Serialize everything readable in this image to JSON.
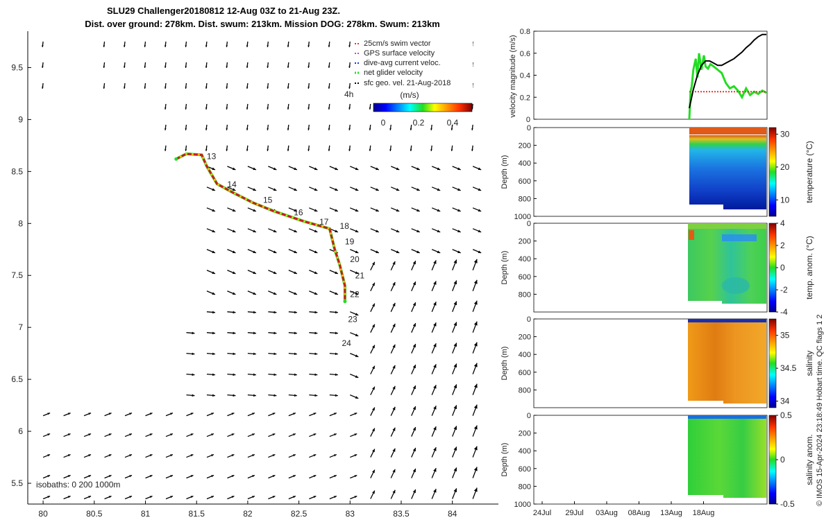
{
  "header": {
    "title_line1": "SLU29 Challenger20180812 12-Aug 03Z to 21-Aug 23Z.",
    "title_line2": "Dist. over ground: 278km. Dist. swum: 213km. Mission DOG: 278km. Swum: 213km"
  },
  "footer": {
    "isobaths_label": "isobaths: 0   200  1000m",
    "side_credit": "© IMOS 15-Apr-2024 23:18:49 Hobart time. QC flags 1  2"
  },
  "legend": {
    "entries": [
      {
        "label": "25cm/s swim vector",
        "color": "#e8332a"
      },
      {
        "label": "GPS surface velocity",
        "color": "#d23cd2"
      },
      {
        "label": "dive-avg current veloc.",
        "color": "#1e2fd6"
      },
      {
        "label": "net glider velocity",
        "color": "#22dd22"
      },
      {
        "label": "sfc geo. vel. 21-Aug-2018",
        "color": "#000000"
      }
    ],
    "day_marker": "4h",
    "colorbar_title": "(m/s)",
    "colorbar_ticks": [
      "0",
      "0.2",
      "0.4"
    ]
  },
  "chart_data": [
    {
      "type": "scatter",
      "name": "glider-track-map",
      "xlim": [
        79.85,
        84.45
      ],
      "ylim": [
        5.3,
        9.85
      ],
      "x_ticks": [
        "80",
        "80.5",
        "81",
        "81.5",
        "82",
        "82.5",
        "83",
        "83.5",
        "84"
      ],
      "y_ticks": [
        "5.5",
        "6",
        "6.5",
        "7",
        "7.5",
        "8",
        "8.5",
        "9",
        "9.5"
      ],
      "track": {
        "lon": [
          81.3,
          81.4,
          81.55,
          81.6,
          81.7,
          81.85,
          82.05,
          82.25,
          82.55,
          82.8,
          82.85,
          82.9,
          82.95,
          82.95
        ],
        "lat": [
          8.62,
          8.67,
          8.66,
          8.55,
          8.38,
          8.3,
          8.2,
          8.12,
          8.02,
          7.95,
          7.75,
          7.6,
          7.4,
          7.25
        ]
      },
      "day_labels": [
        {
          "text": "13",
          "lon": 81.6,
          "lat": 8.62
        },
        {
          "text": "14",
          "lon": 81.8,
          "lat": 8.35
        },
        {
          "text": "15",
          "lon": 82.15,
          "lat": 8.2
        },
        {
          "text": "16",
          "lon": 82.45,
          "lat": 8.08
        },
        {
          "text": "17",
          "lon": 82.7,
          "lat": 7.99
        },
        {
          "text": "18",
          "lon": 82.9,
          "lat": 7.95
        },
        {
          "text": "19",
          "lon": 82.95,
          "lat": 7.8
        },
        {
          "text": "20",
          "lon": 83.0,
          "lat": 7.63
        },
        {
          "text": "21",
          "lon": 83.05,
          "lat": 7.47
        },
        {
          "text": "22",
          "lon": 83.0,
          "lat": 7.29
        },
        {
          "text": "23",
          "lon": 82.98,
          "lat": 7.05
        },
        {
          "text": "24",
          "lon": 82.92,
          "lat": 6.82
        }
      ]
    },
    {
      "type": "line",
      "name": "velocity-magnitude",
      "ylabel": "velocity magnitude (m/s)",
      "ylim": [
        0,
        0.8
      ],
      "y_ticks": [
        "0",
        "0.2",
        "0.4",
        "0.6",
        "0.8"
      ],
      "series": [
        {
          "name": "net glider velocity",
          "color": "#22dd22",
          "t": [
            0,
            0.15,
            0.3,
            0.5,
            0.8,
            1.0,
            1.2,
            1.5,
            1.8,
            2.0,
            2.3,
            2.6,
            3.0,
            3.5,
            4.0,
            4.5,
            5.0,
            5.5,
            6.0,
            6.5,
            7.0,
            7.5,
            8.0,
            8.5,
            9.0,
            9.5
          ],
          "v": [
            0.0,
            0.25,
            0.3,
            0.45,
            0.55,
            0.38,
            0.6,
            0.45,
            0.58,
            0.48,
            0.46,
            0.5,
            0.48,
            0.45,
            0.42,
            0.33,
            0.28,
            0.3,
            0.26,
            0.2,
            0.28,
            0.22,
            0.25,
            0.23,
            0.26,
            0.24
          ]
        },
        {
          "name": "25cm/s swim vector",
          "color": "#e8332a",
          "t": [
            0,
            9.5
          ],
          "v": [
            0.25,
            0.25
          ]
        },
        {
          "name": "sfc geo. vel. 21-Aug-2018",
          "color": "#000000",
          "t": [
            0,
            0.5,
            1.0,
            1.5,
            2.0,
            2.5,
            3.0,
            3.5,
            4.0,
            4.5,
            5.0,
            5.5,
            6.0,
            6.5,
            7.0,
            7.5,
            8.0,
            8.5,
            9.0,
            9.5
          ],
          "v": [
            0.1,
            0.27,
            0.4,
            0.49,
            0.53,
            0.53,
            0.51,
            0.49,
            0.49,
            0.51,
            0.53,
            0.55,
            0.58,
            0.61,
            0.65,
            0.68,
            0.72,
            0.75,
            0.77,
            0.77
          ]
        }
      ]
    },
    {
      "type": "heatmap",
      "name": "temperature-section",
      "ylabel": "Depth (m)",
      "colorbar_label": "temperature (°C)",
      "y_ticks": [
        "0",
        "200",
        "400",
        "600",
        "800",
        "1000"
      ],
      "colorbar_ticks": [
        "10",
        "20",
        "30"
      ],
      "crange": [
        5,
        32
      ]
    },
    {
      "type": "heatmap",
      "name": "temperature-anomaly-section",
      "ylabel": "Depth (m)",
      "colorbar_label": "temp. anom. (°C)",
      "y_ticks": [
        "0",
        "200",
        "400",
        "600",
        "800"
      ],
      "colorbar_ticks": [
        "4",
        "2",
        "0",
        "-2",
        "-4"
      ],
      "crange": [
        -4,
        4
      ]
    },
    {
      "type": "heatmap",
      "name": "salinity-section",
      "ylabel": "Depth (m)",
      "colorbar_label": "salinity",
      "y_ticks": [
        "0",
        "200",
        "400",
        "600",
        "800"
      ],
      "colorbar_ticks": [
        "35",
        "34.5",
        "34"
      ],
      "crange": [
        33.9,
        35.25
      ]
    },
    {
      "type": "heatmap",
      "name": "salinity-anomaly-section",
      "ylabel": "Depth (m)",
      "colorbar_label": "salinity anom.",
      "y_ticks": [
        "0",
        "200",
        "400",
        "600",
        "800",
        "1000"
      ],
      "colorbar_ticks": [
        "0.5",
        "0",
        "-0.5"
      ],
      "crange": [
        -0.5,
        0.5
      ],
      "x_ticks": [
        "24Jul",
        "29Jul",
        "03Aug",
        "08Aug",
        "13Aug",
        "18Aug"
      ]
    }
  ]
}
